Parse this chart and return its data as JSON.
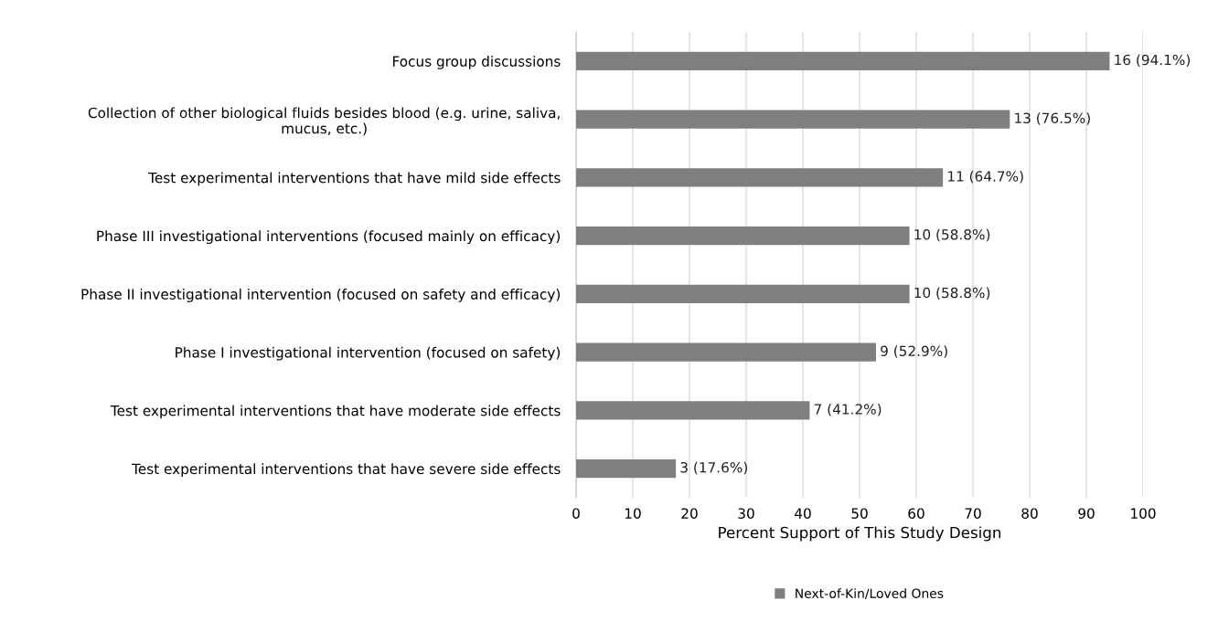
{
  "chart_data": {
    "type": "bar",
    "orientation": "horizontal",
    "xlabel": "Percent Support of This Study Design",
    "categories": [
      "Focus group discussions",
      "Collection of other biological fluids besides blood (e.g. urine, saliva,\nmucus, etc.)",
      "Test experimental interventions that have mild side effects",
      "Phase III investigational interventions (focused mainly on efficacy)",
      "Phase II investigational intervention (focused on safety and efficacy)",
      "Phase I investigational intervention (focused on safety)",
      "Test experimental interventions that have moderate side effects",
      "Test experimental interventions that have severe side effects"
    ],
    "series": [
      {
        "name": "Next-of-Kin/Loved Ones",
        "color": "#7f7f7f",
        "values": [
          94.1,
          76.5,
          64.7,
          58.8,
          58.8,
          52.9,
          41.2,
          17.6
        ],
        "value_labels": [
          "16 (94.1%)",
          "13 (76.5%)",
          "11 (64.7%)",
          "10 (58.8%)",
          "10 (58.8%)",
          "9 (52.9%)",
          "7 (41.2%)",
          "3 (17.6%)"
        ]
      }
    ],
    "xlim": [
      0,
      100
    ],
    "xticks": [
      0,
      10,
      20,
      30,
      40,
      50,
      60,
      70,
      80,
      90,
      100
    ],
    "grid": "x",
    "legend": "bottom"
  }
}
